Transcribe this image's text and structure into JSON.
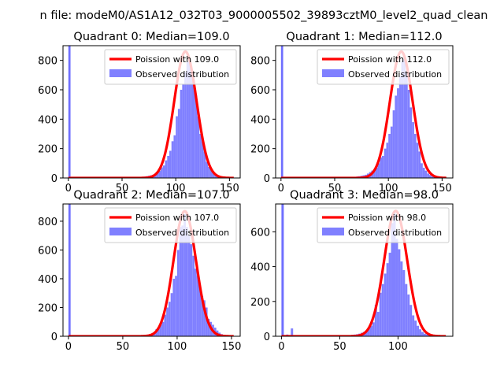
{
  "figure": {
    "suptitle": "n file: modeM0/AS1A12_032T03_9000005502_39893cztM0_level2_quad_clean"
  },
  "colors": {
    "fit_line": "#ff0000",
    "histogram": "#8080ff",
    "spike": "#6f6fff"
  },
  "chart_data": [
    {
      "type": "bar",
      "title": "Quadrant 0: Median=109.0",
      "xlim": [
        -5,
        160
      ],
      "ylim": [
        0,
        900
      ],
      "xticks": [
        0,
        50,
        100,
        150
      ],
      "yticks": [
        0,
        200,
        400,
        600,
        800
      ],
      "legend_position": "upper right",
      "series": [
        {
          "name": "Poission with 109.0",
          "kind": "line",
          "mu": 109.0,
          "peak": 860
        },
        {
          "name": "Observed distribution",
          "kind": "histogram",
          "bins": [
            [
              0,
              2,
              900
            ],
            [
              60,
              62,
              3
            ],
            [
              62,
              64,
              4
            ],
            [
              64,
              66,
              5
            ],
            [
              66,
              68,
              6
            ],
            [
              68,
              70,
              8
            ],
            [
              70,
              72,
              10
            ],
            [
              72,
              74,
              12
            ],
            [
              74,
              76,
              15
            ],
            [
              76,
              78,
              18
            ],
            [
              78,
              80,
              22
            ],
            [
              80,
              82,
              28
            ],
            [
              82,
              84,
              38
            ],
            [
              84,
              86,
              48
            ],
            [
              86,
              88,
              72
            ],
            [
              88,
              90,
              85
            ],
            [
              90,
              92,
              120
            ],
            [
              92,
              94,
              150
            ],
            [
              94,
              96,
              185
            ],
            [
              96,
              98,
              250
            ],
            [
              98,
              100,
              290
            ],
            [
              100,
              102,
              420
            ],
            [
              102,
              104,
              470
            ],
            [
              104,
              106,
              600
            ],
            [
              106,
              108,
              640
            ],
            [
              108,
              110,
              720
            ],
            [
              110,
              112,
              790
            ],
            [
              112,
              114,
              800
            ],
            [
              114,
              116,
              720
            ],
            [
              116,
              118,
              640
            ],
            [
              118,
              120,
              560
            ],
            [
              120,
              122,
              420
            ],
            [
              122,
              124,
              300
            ],
            [
              124,
              126,
              250
            ],
            [
              126,
              128,
              180
            ],
            [
              128,
              130,
              110
            ],
            [
              130,
              132,
              75
            ],
            [
              132,
              134,
              55
            ],
            [
              134,
              136,
              35
            ],
            [
              136,
              138,
              22
            ],
            [
              138,
              140,
              14
            ],
            [
              140,
              142,
              10
            ],
            [
              142,
              144,
              7
            ],
            [
              144,
              146,
              5
            ],
            [
              146,
              148,
              3
            ]
          ]
        }
      ]
    },
    {
      "type": "bar",
      "title": "Quadrant 1: Median=112.0",
      "xlim": [
        -5,
        160
      ],
      "ylim": [
        0,
        900
      ],
      "xticks": [
        0,
        50,
        100,
        150
      ],
      "yticks": [
        0,
        200,
        400,
        600,
        800
      ],
      "legend_position": "upper right",
      "series": [
        {
          "name": "Poission with 112.0",
          "kind": "line",
          "mu": 112.0,
          "peak": 860
        },
        {
          "name": "Observed distribution",
          "kind": "histogram",
          "bins": [
            [
              0,
              2,
              900
            ],
            [
              60,
              62,
              3
            ],
            [
              62,
              64,
              4
            ],
            [
              64,
              66,
              5
            ],
            [
              66,
              68,
              6
            ],
            [
              68,
              70,
              8
            ],
            [
              70,
              72,
              10
            ],
            [
              72,
              74,
              12
            ],
            [
              74,
              76,
              15
            ],
            [
              76,
              78,
              18
            ],
            [
              78,
              80,
              22
            ],
            [
              80,
              82,
              30
            ],
            [
              82,
              84,
              40
            ],
            [
              84,
              86,
              50
            ],
            [
              86,
              88,
              60
            ],
            [
              88,
              90,
              70
            ],
            [
              90,
              92,
              100
            ],
            [
              92,
              94,
              140
            ],
            [
              94,
              96,
              150
            ],
            [
              96,
              98,
              200
            ],
            [
              98,
              100,
              240
            ],
            [
              100,
              102,
              300
            ],
            [
              102,
              104,
              350
            ],
            [
              104,
              106,
              460
            ],
            [
              106,
              108,
              560
            ],
            [
              108,
              110,
              610
            ],
            [
              110,
              112,
              690
            ],
            [
              112,
              114,
              800
            ],
            [
              114,
              116,
              810
            ],
            [
              116,
              118,
              720
            ],
            [
              118,
              120,
              600
            ],
            [
              120,
              122,
              480
            ],
            [
              122,
              124,
              380
            ],
            [
              124,
              126,
              300
            ],
            [
              126,
              128,
              240
            ],
            [
              128,
              130,
              180
            ],
            [
              130,
              132,
              100
            ],
            [
              132,
              134,
              70
            ],
            [
              134,
              136,
              50
            ],
            [
              136,
              138,
              30
            ],
            [
              138,
              140,
              20
            ],
            [
              140,
              142,
              12
            ],
            [
              142,
              144,
              8
            ],
            [
              144,
              146,
              5
            ],
            [
              146,
              148,
              3
            ],
            [
              148,
              150,
              2
            ]
          ]
        }
      ]
    },
    {
      "type": "bar",
      "title": "Quadrant 2: Median=107.0",
      "xlim": [
        -5,
        158
      ],
      "ylim": [
        0,
        920
      ],
      "xticks": [
        0,
        50,
        100,
        150
      ],
      "yticks": [
        0,
        200,
        400,
        600,
        800
      ],
      "legend_position": "upper right",
      "series": [
        {
          "name": "Poission with 107.0",
          "kind": "line",
          "mu": 107.0,
          "peak": 870
        },
        {
          "name": "Observed distribution",
          "kind": "histogram",
          "bins": [
            [
              0,
              2,
              920
            ],
            [
              60,
              62,
              3
            ],
            [
              62,
              64,
              4
            ],
            [
              64,
              66,
              5
            ],
            [
              66,
              68,
              6
            ],
            [
              68,
              70,
              8
            ],
            [
              70,
              72,
              10
            ],
            [
              72,
              74,
              12
            ],
            [
              74,
              76,
              15
            ],
            [
              76,
              78,
              20
            ],
            [
              78,
              80,
              25
            ],
            [
              80,
              82,
              50
            ],
            [
              82,
              84,
              60
            ],
            [
              84,
              86,
              80
            ],
            [
              86,
              88,
              100
            ],
            [
              88,
              90,
              150
            ],
            [
              90,
              92,
              200
            ],
            [
              92,
              94,
              240
            ],
            [
              94,
              96,
              300
            ],
            [
              96,
              98,
              400
            ],
            [
              98,
              100,
              420
            ],
            [
              100,
              102,
              600
            ],
            [
              102,
              104,
              760
            ],
            [
              104,
              106,
              770
            ],
            [
              106,
              108,
              850
            ],
            [
              108,
              110,
              760
            ],
            [
              110,
              112,
              700
            ],
            [
              112,
              114,
              640
            ],
            [
              114,
              116,
              560
            ],
            [
              116,
              118,
              470
            ],
            [
              118,
              120,
              420
            ],
            [
              120,
              122,
              350
            ],
            [
              122,
              124,
              280
            ],
            [
              124,
              126,
              250
            ],
            [
              126,
              128,
              200
            ],
            [
              128,
              130,
              120
            ],
            [
              130,
              132,
              100
            ],
            [
              132,
              134,
              80
            ],
            [
              134,
              136,
              60
            ],
            [
              136,
              138,
              40
            ],
            [
              138,
              140,
              25
            ],
            [
              140,
              142,
              15
            ],
            [
              142,
              144,
              10
            ],
            [
              144,
              146,
              6
            ],
            [
              146,
              148,
              4
            ],
            [
              148,
              150,
              2
            ]
          ]
        }
      ]
    },
    {
      "type": "bar",
      "title": "Quadrant 3: Median=98.0",
      "xlim": [
        -5,
        147
      ],
      "ylim": [
        0,
        760
      ],
      "xticks": [
        0,
        50,
        100
      ],
      "yticks": [
        0,
        200,
        400,
        600
      ],
      "legend_position": "upper right",
      "series": [
        {
          "name": "Poission with 98.0",
          "kind": "line",
          "mu": 98.0,
          "peak": 720
        },
        {
          "name": "Observed distribution",
          "kind": "histogram",
          "bins": [
            [
              0,
              2,
              760
            ],
            [
              4,
              6,
              10
            ],
            [
              8,
              10,
              45
            ],
            [
              12,
              14,
              3
            ],
            [
              50,
              52,
              3
            ],
            [
              54,
              56,
              5
            ],
            [
              58,
              60,
              6
            ],
            [
              60,
              62,
              8
            ],
            [
              62,
              64,
              10
            ],
            [
              64,
              66,
              12
            ],
            [
              66,
              68,
              15
            ],
            [
              68,
              70,
              20
            ],
            [
              70,
              72,
              25
            ],
            [
              72,
              74,
              30
            ],
            [
              74,
              76,
              50
            ],
            [
              76,
              78,
              60
            ],
            [
              78,
              80,
              80
            ],
            [
              80,
              82,
              180
            ],
            [
              82,
              84,
              140
            ],
            [
              84,
              86,
              250
            ],
            [
              86,
              88,
              300
            ],
            [
              88,
              90,
              360
            ],
            [
              90,
              92,
              420
            ],
            [
              92,
              94,
              480
            ],
            [
              94,
              96,
              650
            ],
            [
              96,
              98,
              710
            ],
            [
              98,
              100,
              560
            ],
            [
              100,
              102,
              500
            ],
            [
              102,
              104,
              430
            ],
            [
              104,
              106,
              380
            ],
            [
              106,
              108,
              300
            ],
            [
              108,
              110,
              240
            ],
            [
              110,
              112,
              180
            ],
            [
              112,
              114,
              120
            ],
            [
              114,
              116,
              90
            ],
            [
              116,
              118,
              60
            ],
            [
              118,
              120,
              40
            ],
            [
              120,
              122,
              25
            ],
            [
              122,
              124,
              15
            ],
            [
              124,
              126,
              10
            ],
            [
              126,
              128,
              6
            ],
            [
              128,
              130,
              3
            ]
          ]
        }
      ]
    }
  ]
}
